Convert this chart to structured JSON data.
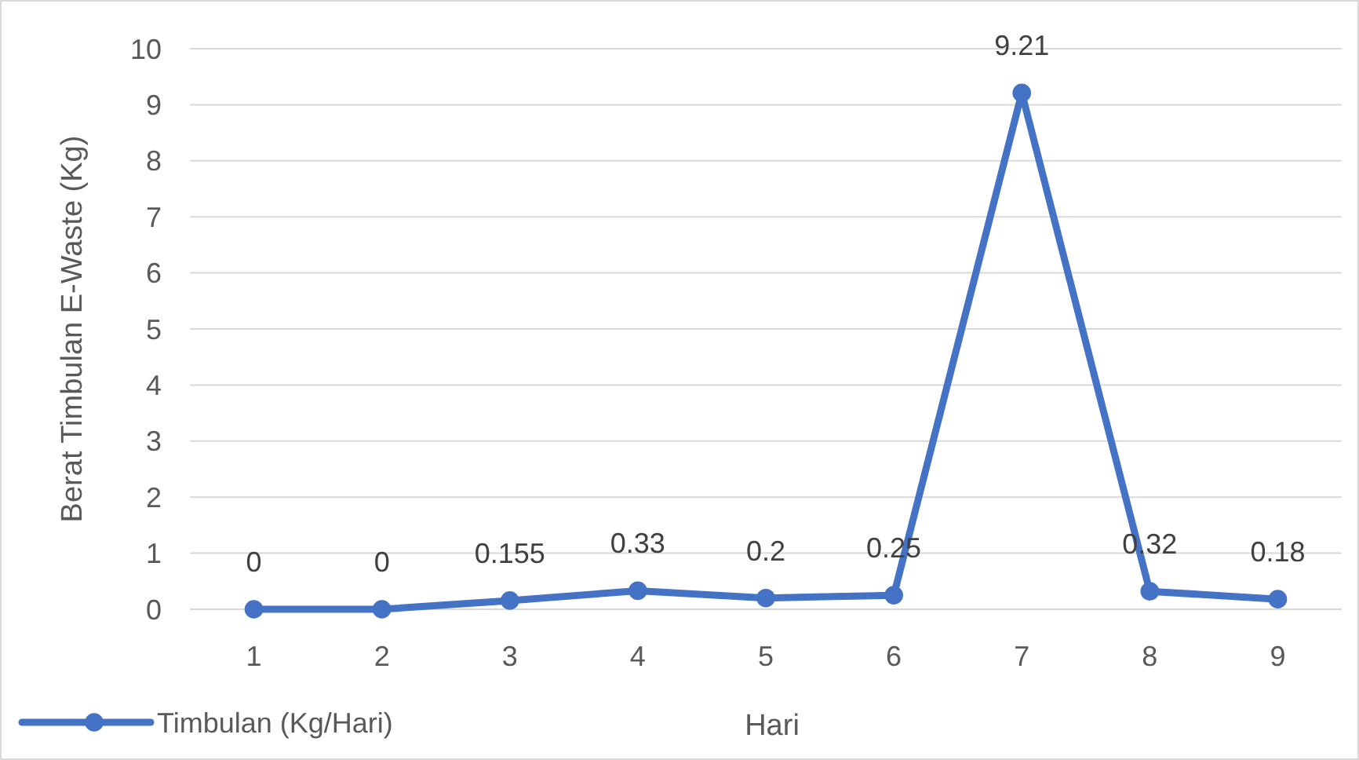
{
  "chart_data": {
    "type": "line",
    "xlabel": "Hari",
    "ylabel": "Berat Timbulan E-Waste (Kg)",
    "categories": [
      "1",
      "2",
      "3",
      "4",
      "5",
      "6",
      "7",
      "8",
      "9"
    ],
    "series": [
      {
        "name": "Timbulan (Kg/Hari)",
        "color": "#4472c4",
        "values": [
          0,
          0,
          0.155,
          0.33,
          0.2,
          0.25,
          9.21,
          0.32,
          0.18
        ]
      }
    ],
    "ylim": [
      0,
      10
    ],
    "yticks": [
      0,
      1,
      2,
      3,
      4,
      5,
      6,
      7,
      8,
      9,
      10
    ],
    "grid": "y",
    "legend": "bottom left",
    "marker": "circle",
    "data_labels": true
  }
}
